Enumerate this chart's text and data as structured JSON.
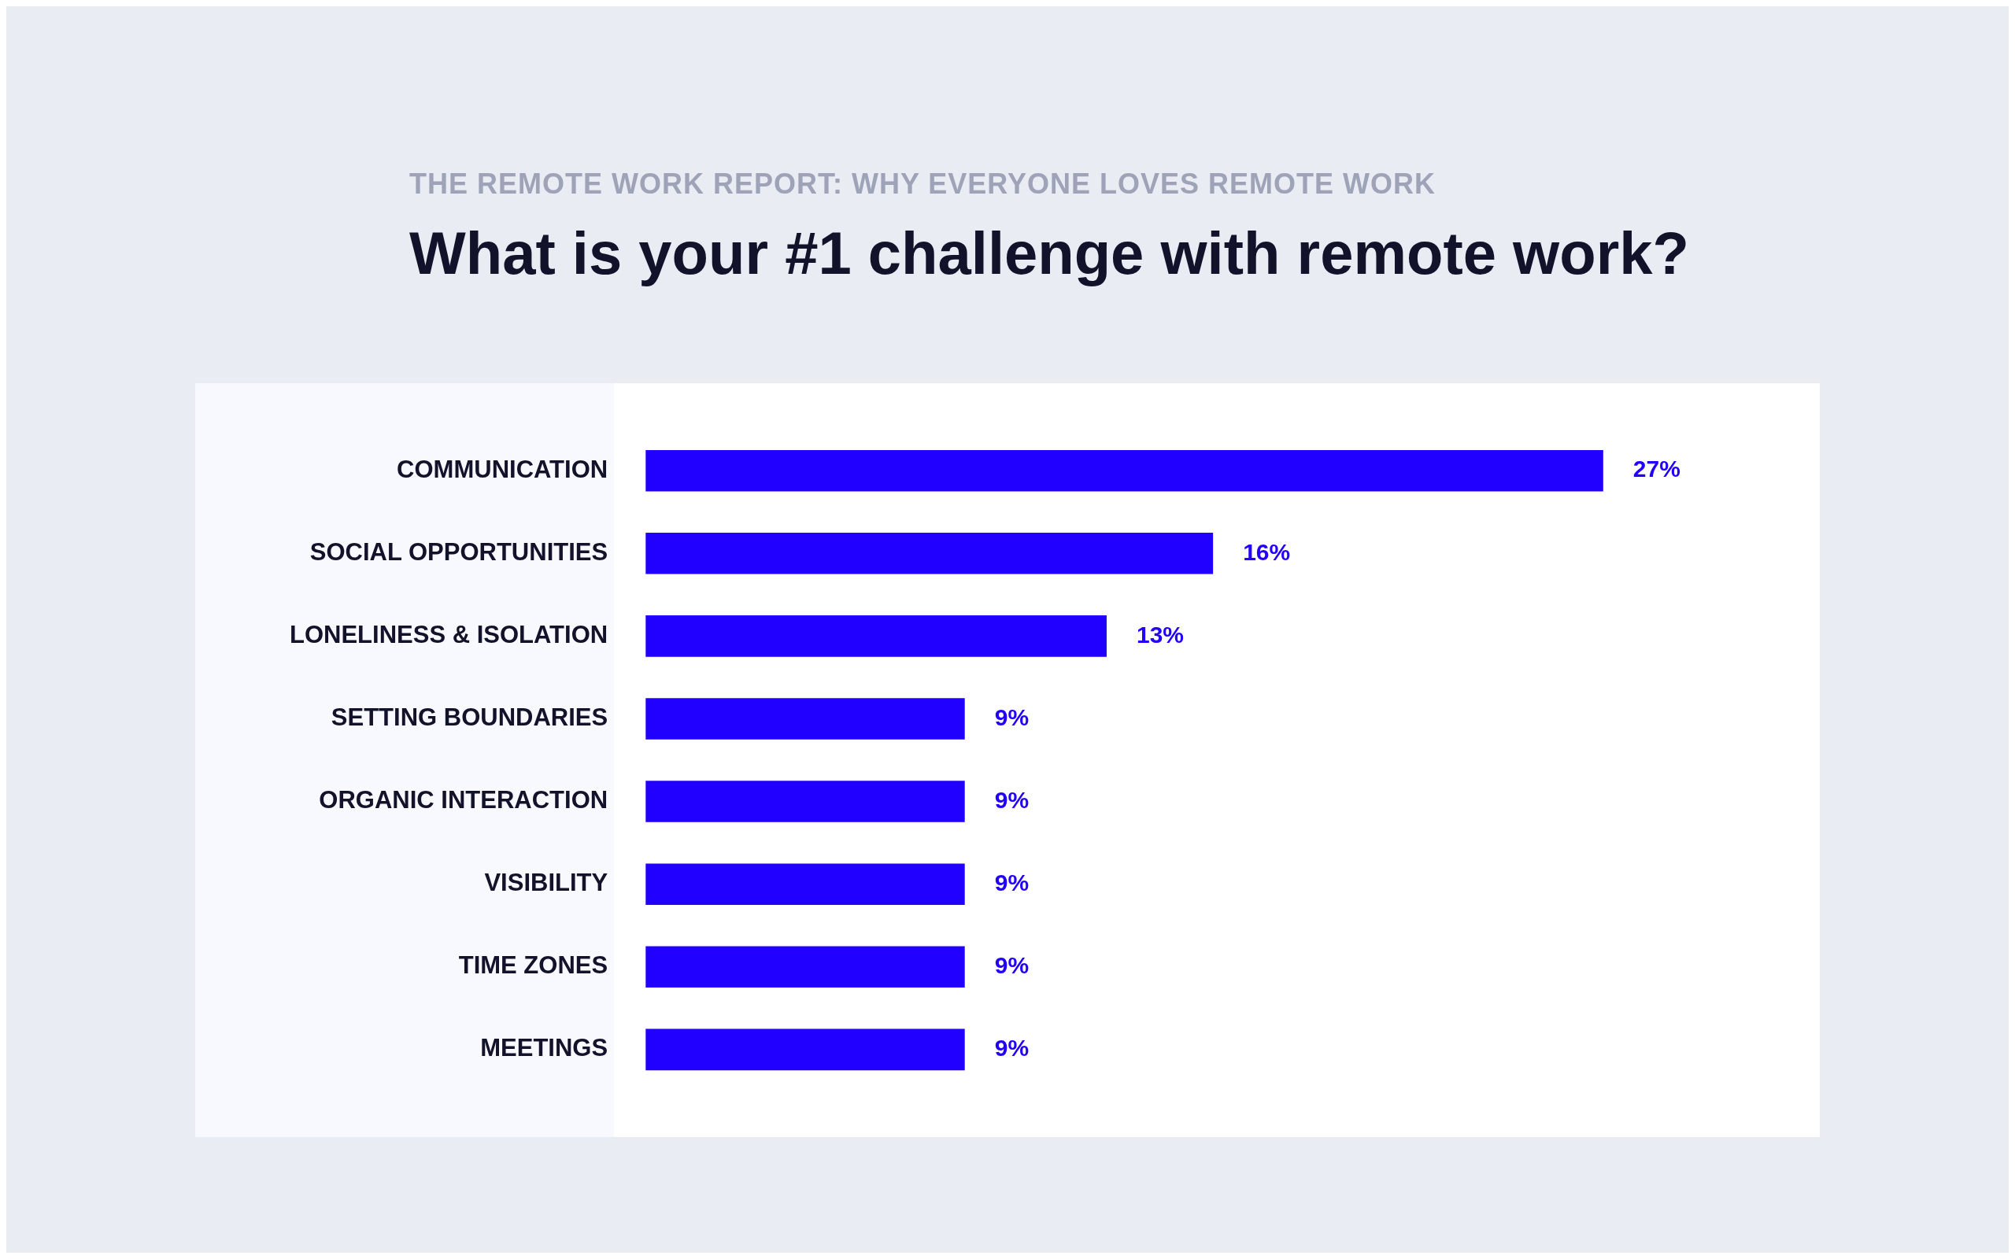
{
  "chart_data": {
    "type": "bar",
    "orientation": "horizontal",
    "subtitle": "THE REMOTE WORK REPORT: WHY EVERYONE LOVES REMOTE WORK",
    "title": "What is your #1 challenge with remote work?",
    "categories": [
      "COMMUNICATION",
      "SOCIAL OPPORTUNITIES",
      "LONELINESS & ISOLATION",
      "SETTING BOUNDARIES",
      "ORGANIC INTERACTION",
      "VISIBILITY",
      "TIME ZONES",
      "MEETINGS"
    ],
    "values": [
      27,
      16,
      13,
      9,
      9,
      9,
      9,
      9
    ],
    "value_labels": [
      "27%",
      "16%",
      "13%",
      "9%",
      "9%",
      "9%",
      "9%",
      "9%"
    ],
    "color": "#2200ff",
    "tick_labels": "y"
  }
}
